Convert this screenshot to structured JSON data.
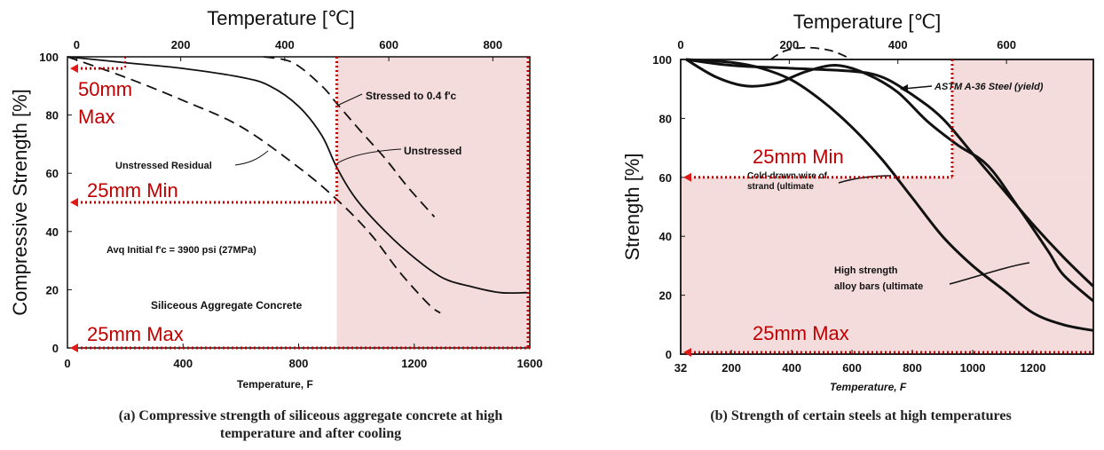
{
  "chart_data": [
    {
      "type": "line",
      "id": "a",
      "caption": "(a) Compressive strength of siliceous aggregate concrete at high temperature and after cooling",
      "caption_line1": "(a) Compressive strength of siliceous aggregate concrete at high",
      "caption_line2": "temperature and after cooling",
      "top_axis_title": "Temperature [℃]",
      "top_ticks": [
        "0",
        "200",
        "400",
        "600",
        "800"
      ],
      "top_tick_values": [
        0,
        200,
        400,
        600,
        800
      ],
      "xlabel": "Temperature,  F",
      "x_ticks": [
        "0",
        "400",
        "800",
        "1200",
        "1600"
      ],
      "x_tick_values": [
        0,
        400,
        800,
        1200,
        1600
      ],
      "ylabel": "Compressive Strength [%]",
      "y_ticks": [
        "0",
        "20",
        "40",
        "60",
        "80",
        "100"
      ],
      "y_tick_values": [
        0,
        20,
        40,
        60,
        80,
        100
      ],
      "xlim": [
        0,
        1600
      ],
      "ylim": [
        0,
        100
      ],
      "notes": {
        "stressed": "Stressed to 0.4 f'c",
        "unstressed": "Unstressed",
        "residual": "Unstressed   Residual",
        "initial": "Avq  Initial f'c = 3900 psi (27MPa)",
        "aggregate": "Siliceous Aggregate Concrete"
      },
      "series": [
        {
          "name": "Stressed to 0.4 f'c",
          "style": "dashed",
          "x": [
            680,
            780,
            880,
            932,
            1010,
            1100,
            1180,
            1270
          ],
          "y": [
            100,
            98,
            90,
            84,
            75,
            65,
            55,
            45
          ]
        },
        {
          "name": "Unstressed",
          "style": "solid",
          "x": [
            0,
            200,
            400,
            600,
            700,
            800,
            880,
            932,
            1000,
            1100,
            1200,
            1300,
            1400,
            1500,
            1590
          ],
          "y": [
            100,
            98,
            96,
            93,
            90,
            83,
            73,
            62,
            51,
            40,
            31,
            24,
            21,
            19,
            19
          ]
        },
        {
          "name": "Unstressed Residual",
          "style": "dashed",
          "x": [
            0,
            200,
            400,
            600,
            800,
            932,
            1050,
            1150,
            1250,
            1290
          ],
          "y": [
            100,
            93,
            85,
            76,
            62,
            51,
            39,
            26,
            15,
            12
          ]
        }
      ],
      "overlays": {
        "shade_from_x": 932,
        "shade_color": "#f4dcdc",
        "marker_color": "#e01818",
        "dotted_color": "#c00000",
        "label_color": "#c00000",
        "labels": [
          {
            "text_line1": "50mm",
            "text_line2": "Max",
            "arrow_y": 96
          },
          {
            "text": "25mm Min",
            "arrow_y": 50
          },
          {
            "text": "25mm Max",
            "arrow_y": 0
          }
        ],
        "max50_x": 200
      }
    },
    {
      "type": "line",
      "id": "b",
      "caption": "(b) Strength of certain steels at high temperatures",
      "top_axis_title": "Temperature [℃]",
      "top_ticks": [
        "0",
        "200",
        "400",
        "600"
      ],
      "top_tick_values": [
        0,
        200,
        400,
        600
      ],
      "xlabel": "Temperature, F",
      "x_ticks": [
        "32",
        "200",
        "400",
        "600",
        "800",
        "1000",
        "1200"
      ],
      "x_tick_values": [
        32,
        200,
        400,
        600,
        800,
        1000,
        1200
      ],
      "ylabel": "Strength [%]",
      "y_ticks": [
        "0",
        "20",
        "40",
        "60",
        "80",
        "100"
      ],
      "y_tick_values": [
        0,
        20,
        40,
        60,
        80,
        100
      ],
      "xlim": [
        32,
        1400
      ],
      "ylim": [
        0,
        100
      ],
      "notes": {
        "astm": "ASTM A-36 Steel (yield)",
        "cold_line1": "Cold-drawn wire of",
        "cold_line2": "strand (ultimate",
        "high_line1": "High strength",
        "high_line2": "alloy bars  (ultimate"
      },
      "series": [
        {
          "name": "ASTM A-36 Steel (yield)",
          "style": "solid",
          "x": [
            50,
            200,
            400,
            600,
            700,
            800,
            900,
            1000,
            1100,
            1200,
            1300,
            1400
          ],
          "y": [
            100,
            98,
            97,
            96,
            94,
            88,
            80,
            68,
            56,
            44,
            33,
            23
          ]
        },
        {
          "name": "Cold-drawn wire of strand (ultimate)",
          "style": "solid",
          "x": [
            50,
            200,
            300,
            400,
            500,
            600,
            700,
            800,
            900,
            1000,
            1100,
            1200,
            1300,
            1400
          ],
          "y": [
            100,
            99,
            97,
            93,
            86,
            77,
            66,
            53,
            40,
            30,
            22,
            14,
            10,
            8
          ]
        },
        {
          "name": "High strength alloy bars (ultimate)",
          "style": "solid",
          "x": [
            50,
            150,
            250,
            350,
            450,
            550,
            650,
            750,
            850,
            950,
            1050,
            1150,
            1250,
            1300,
            1400
          ],
          "y": [
            100,
            94,
            91,
            92,
            96,
            98,
            95,
            89,
            79,
            71,
            64,
            50,
            35,
            27,
            18
          ]
        },
        {
          "name": "upper dashed",
          "style": "dashed",
          "x": [
            330,
            380,
            450,
            530,
            600
          ],
          "y": [
            100,
            103,
            104,
            103,
            100
          ]
        }
      ],
      "overlays": {
        "shade_from_x": 932,
        "shade_color": "#f4dcdc",
        "marker_color": "#e01818",
        "dotted_color": "#c00000",
        "label_color": "#c00000",
        "labels": [
          {
            "text": "25mm Min",
            "arrow_y": 60
          },
          {
            "text": "25mm Max",
            "arrow_y": 0
          }
        ]
      }
    }
  ]
}
